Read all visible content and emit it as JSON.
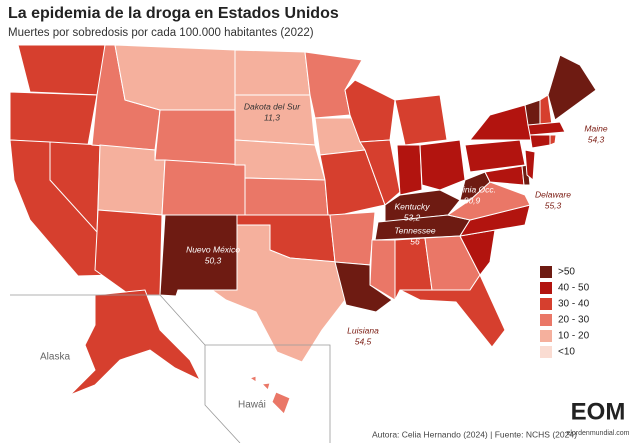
{
  "title": "La epidemia de la droga en Estados Unidos",
  "subtitle": "Muertes por sobredosis por cada 100.000 habitantes (2022)",
  "legend": [
    {
      "label": ">50",
      "color": "#6e1b12"
    },
    {
      "label": "40 - 50",
      "color": "#b2140f"
    },
    {
      "label": "30 - 40",
      "color": "#d63f2e"
    },
    {
      "label": "20 - 30",
      "color": "#ea7767"
    },
    {
      "label": "10 - 20",
      "color": "#f5b09d"
    },
    {
      "label": "<10",
      "color": "#fadcd2"
    }
  ],
  "labels": [
    {
      "name": "Dakota del Sur",
      "value": 11.3,
      "value_label": "11,3"
    },
    {
      "name": "Maine",
      "value": 54.3,
      "value_label": "54,3"
    },
    {
      "name": "Virginia Occ.",
      "value": 80.9,
      "value_label": "80,9"
    },
    {
      "name": "Kentucky",
      "value": 53.2,
      "value_label": "53,2"
    },
    {
      "name": "Delaware",
      "value": 55.3,
      "value_label": "55,3"
    },
    {
      "name": "Tennessee",
      "value": 56,
      "value_label": "56"
    },
    {
      "name": "Nuevo México",
      "value": 50.3,
      "value_label": "50,3"
    },
    {
      "name": "Luisiana",
      "value": 54.5,
      "value_label": "54,5"
    }
  ],
  "insets": [
    "Alaska",
    "Hawái"
  ],
  "source": "Autora: Celia Hernando (2024) | Fuente: NCHS (2024)",
  "logo": {
    "mark": "EOM",
    "site": "elordenmundial.com"
  }
}
